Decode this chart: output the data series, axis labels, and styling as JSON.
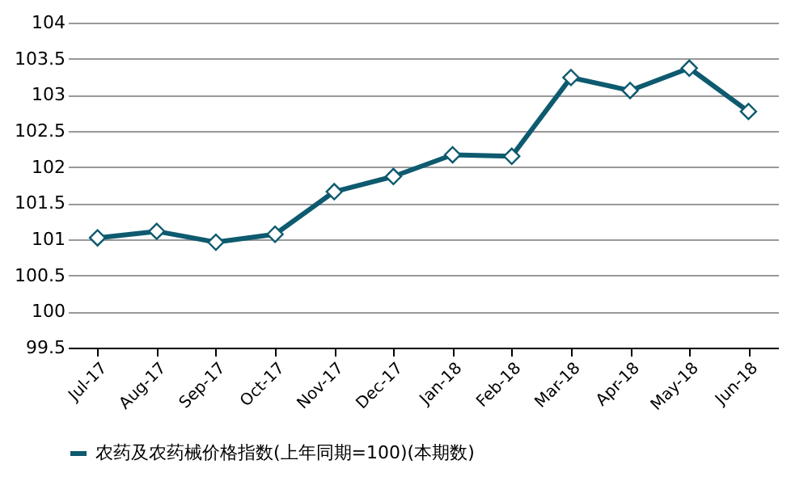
{
  "chart_data": {
    "type": "line",
    "categories": [
      "Jul-17",
      "Aug-17",
      "Sep-17",
      "Oct-17",
      "Nov-17",
      "Dec-17",
      "Jan-18",
      "Feb-18",
      "Mar-18",
      "Apr-18",
      "May-18",
      "Jun-18"
    ],
    "series": [
      {
        "name": "农药及农药械价格指数(上年同期=100)(本期数)",
        "color": "#0e5a6f",
        "values": [
          101.02,
          101.11,
          100.96,
          101.07,
          101.66,
          101.87,
          102.17,
          102.15,
          103.24,
          103.06,
          103.37,
          102.77
        ]
      }
    ],
    "ylim": [
      99.5,
      104
    ],
    "yticks": [
      99.5,
      100,
      100.5,
      101,
      101.5,
      102,
      102.5,
      103,
      103.5,
      104
    ],
    "grid": "y",
    "legend": "bottom",
    "marker": "diamond",
    "line_style": "solid"
  }
}
